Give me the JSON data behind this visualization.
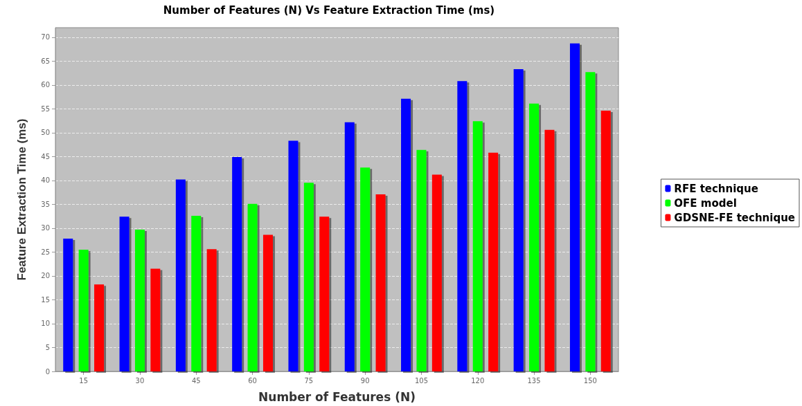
{
  "chart_data": {
    "type": "bar",
    "title": "Number of Features (N) Vs Feature Extraction Time (ms)",
    "xlabel": "Number of Features (N)",
    "ylabel": "Feature Extraction Time (ms)",
    "categories": [
      "15",
      "30",
      "45",
      "60",
      "75",
      "90",
      "105",
      "120",
      "135",
      "150"
    ],
    "series": [
      {
        "name": "RFE technique",
        "color": "#0000ff",
        "values": [
          27.8,
          32.4,
          40.2,
          44.9,
          48.3,
          52.2,
          57.1,
          60.8,
          63.3,
          68.7
        ]
      },
      {
        "name": "OFE model",
        "color": "#00ff00",
        "values": [
          25.5,
          29.7,
          32.6,
          35.1,
          39.5,
          42.7,
          46.4,
          52.4,
          56.1,
          62.7
        ]
      },
      {
        "name": "GDSNE-FE technique",
        "color": "#ff0000",
        "values": [
          18.2,
          21.5,
          25.6,
          28.6,
          32.4,
          37.1,
          41.2,
          45.8,
          50.6,
          54.6
        ]
      }
    ],
    "ylim": [
      0,
      72
    ],
    "yticks": [
      0,
      5,
      10,
      15,
      20,
      25,
      30,
      35,
      40,
      45,
      50,
      55,
      60,
      65,
      70
    ],
    "grid": "y",
    "legend": "right"
  }
}
